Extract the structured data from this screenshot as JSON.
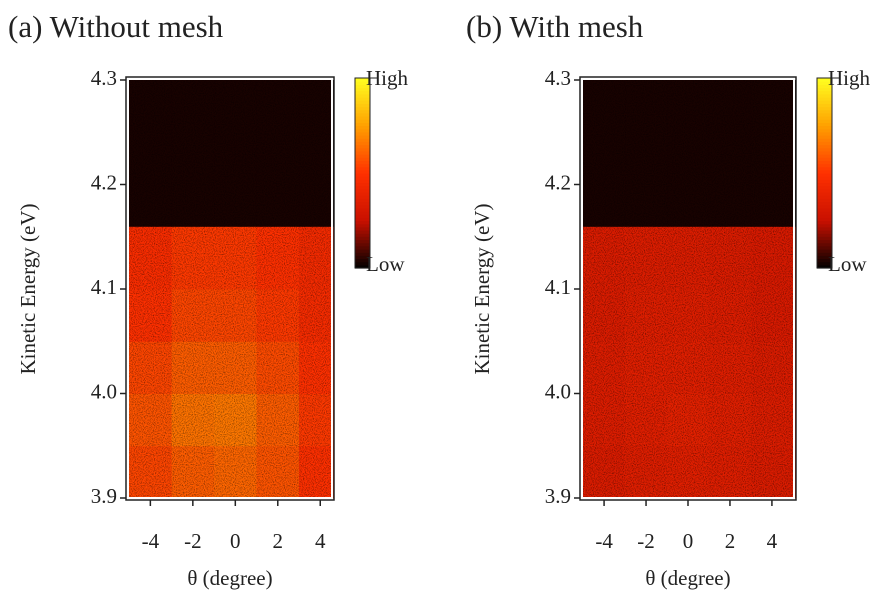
{
  "chart_data": [
    {
      "type": "heatmap",
      "title": "(a) Without mesh",
      "x_label": "θ (degree)",
      "y_label": "Kinetic Energy (eV)",
      "xlim": [
        -5.1,
        4.6
      ],
      "ylim": [
        3.9,
        4.3
      ],
      "xticks": [
        -4,
        -2,
        0,
        2,
        4
      ],
      "yticks": [
        3.9,
        {
          "value": 4,
          "label": "4.0"
        },
        4.1,
        4.2,
        4.3
      ],
      "x_bins": [
        -5.1,
        -3,
        -1,
        1,
        3,
        4.6
      ],
      "y_bins": [
        3.9,
        3.95,
        4.0,
        4.05,
        4.1,
        4.16,
        4.3
      ],
      "z": [
        [
          0.55,
          0.6,
          0.62,
          0.58,
          0.5
        ],
        [
          0.58,
          0.65,
          0.66,
          0.6,
          0.52
        ],
        [
          0.55,
          0.6,
          0.6,
          0.56,
          0.5
        ],
        [
          0.5,
          0.55,
          0.55,
          0.52,
          0.47
        ],
        [
          0.48,
          0.52,
          0.52,
          0.5,
          0.46
        ],
        [
          0.03,
          0.03,
          0.03,
          0.03,
          0.03
        ]
      ],
      "zlim": [
        0,
        1
      ],
      "colormap": [
        "#000000",
        "#c81000",
        "#ff3000",
        "#ffa000",
        "#ffff20"
      ],
      "colorbar_labels": [
        "High",
        "Low"
      ]
    },
    {
      "type": "heatmap",
      "title": "(b) With mesh",
      "x_label": "θ (degree)",
      "y_label": "Kinetic Energy (eV)",
      "xlim": [
        -5.1,
        5.1
      ],
      "ylim": [
        3.9,
        4.3
      ],
      "xticks": [
        -4,
        -2,
        0,
        2,
        4
      ],
      "yticks": [
        3.9,
        {
          "value": 4,
          "label": "4.0"
        },
        4.1,
        4.2,
        4.3
      ],
      "x_bins": [
        -5.1,
        -3,
        -1,
        1,
        3,
        5.1
      ],
      "y_bins": [
        3.9,
        3.95,
        4.0,
        4.05,
        4.1,
        4.16,
        4.3
      ],
      "z": [
        [
          0.34,
          0.36,
          0.37,
          0.36,
          0.34
        ],
        [
          0.35,
          0.37,
          0.38,
          0.37,
          0.35
        ],
        [
          0.35,
          0.37,
          0.37,
          0.36,
          0.34
        ],
        [
          0.34,
          0.36,
          0.36,
          0.35,
          0.33
        ],
        [
          0.34,
          0.35,
          0.35,
          0.34,
          0.33
        ],
        [
          0.03,
          0.03,
          0.03,
          0.03,
          0.03
        ]
      ],
      "zlim": [
        0,
        1
      ],
      "colormap": [
        "#000000",
        "#c81000",
        "#ff3000",
        "#ffa000",
        "#ffff20"
      ],
      "colorbar_labels": [
        "High",
        "Low"
      ]
    }
  ]
}
